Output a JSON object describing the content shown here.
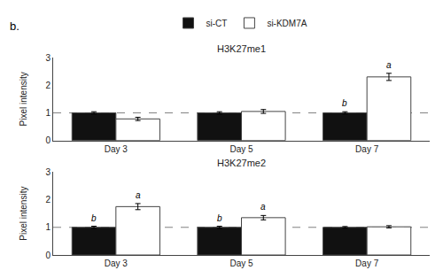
{
  "panel_label": "b.",
  "chart_data": [
    {
      "type": "bar",
      "title": "H3K27me1",
      "categories": [
        "Day 3",
        "Day 5",
        "Day 7"
      ],
      "series": [
        {
          "name": "si-CT",
          "color": "#111111",
          "values": [
            1.0,
            1.0,
            1.0
          ],
          "errors": [
            0.04,
            0.04,
            0.04
          ]
        },
        {
          "name": "si-KDM7A",
          "color": "#ffffff",
          "values": [
            0.78,
            1.05,
            2.3
          ],
          "errors": [
            0.06,
            0.07,
            0.13
          ]
        }
      ],
      "annotations": [
        {
          "category": "Day 7",
          "series": "si-CT",
          "text": "b"
        },
        {
          "category": "Day 7",
          "series": "si-KDM7A",
          "text": "a"
        }
      ],
      "reference_line": 1.0,
      "ylabel": "Pixel intensity",
      "ylim": [
        0,
        3
      ],
      "yticks": [
        0,
        1,
        2,
        3
      ],
      "grid": false,
      "legend": "top"
    },
    {
      "type": "bar",
      "title": "H3K27me2",
      "categories": [
        "Day 3",
        "Day 5",
        "Day 7"
      ],
      "series": [
        {
          "name": "si-CT",
          "color": "#111111",
          "values": [
            1.0,
            1.0,
            1.0
          ],
          "errors": [
            0.04,
            0.04,
            0.03
          ]
        },
        {
          "name": "si-KDM7A",
          "color": "#ffffff",
          "values": [
            1.75,
            1.35,
            1.02
          ],
          "errors": [
            0.11,
            0.08,
            0.04
          ]
        }
      ],
      "annotations": [
        {
          "category": "Day 3",
          "series": "si-CT",
          "text": "b"
        },
        {
          "category": "Day 5",
          "series": "si-CT",
          "text": "b"
        },
        {
          "category": "Day 3",
          "series": "si-KDM7A",
          "text": "a"
        },
        {
          "category": "Day 5",
          "series": "si-KDM7A",
          "text": "a"
        }
      ],
      "reference_line": 1.0,
      "ylabel": "Pixel intensity",
      "ylim": [
        0,
        3
      ],
      "yticks": [
        0,
        1,
        2,
        3
      ],
      "grid": false,
      "legend": "top"
    }
  ]
}
